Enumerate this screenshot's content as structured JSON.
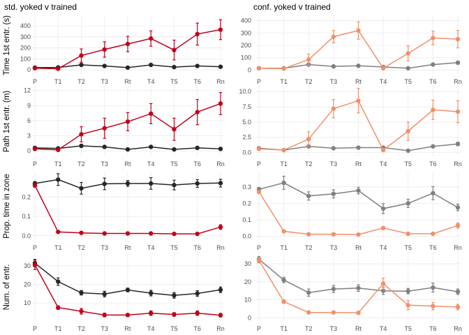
{
  "chart_data": [
    {
      "type": "line",
      "panel_title": "std. yoked v trained",
      "ylabel": "Time 1st entr. (s)",
      "categories": [
        "P",
        "T1",
        "T2",
        "T3",
        "Rt",
        "T4",
        "T5",
        "T6",
        "Rn"
      ],
      "ylim": [
        -25,
        470
      ],
      "yticks": [
        0,
        100,
        200,
        300,
        400
      ],
      "grid": true,
      "series": [
        {
          "color": "#c0001a",
          "values": [
            15,
            10,
            130,
            185,
            235,
            285,
            180,
            325,
            365
          ],
          "err": [
            5,
            5,
            60,
            70,
            70,
            70,
            90,
            100,
            90
          ]
        },
        {
          "color": "#262626",
          "values": [
            20,
            22,
            45,
            35,
            20,
            45,
            25,
            35,
            28
          ],
          "err": [
            5,
            5,
            8,
            8,
            5,
            8,
            6,
            6,
            5
          ]
        }
      ]
    },
    {
      "type": "line",
      "panel_title": "conf. yoked v trained",
      "ylabel": "",
      "categories": [
        "P",
        "T1",
        "T2",
        "T3",
        "Rt",
        "T4",
        "T5",
        "T6",
        "Rn"
      ],
      "ylim": [
        -20,
        420
      ],
      "yticks": [
        0,
        100,
        200,
        300,
        400
      ],
      "grid": true,
      "series": [
        {
          "color": "#f0906a",
          "values": [
            15,
            12,
            85,
            270,
            320,
            15,
            135,
            260,
            250
          ],
          "err": [
            5,
            5,
            45,
            50,
            70,
            8,
            60,
            55,
            70
          ]
        },
        {
          "color": "#808080",
          "values": [
            15,
            15,
            45,
            30,
            35,
            25,
            15,
            45,
            60
          ],
          "err": [
            5,
            5,
            10,
            8,
            8,
            8,
            5,
            10,
            12
          ]
        }
      ]
    },
    {
      "type": "line",
      "panel_title": "",
      "ylabel": "Path 1st entr. (m)",
      "categories": [
        "P",
        "T1",
        "T2",
        "T3",
        "Rt",
        "T4",
        "T5",
        "T6",
        "Rn"
      ],
      "ylim": [
        -0.8,
        12.5
      ],
      "yticks": [
        0,
        3,
        6,
        9,
        12
      ],
      "grid": true,
      "series": [
        {
          "color": "#c0001a",
          "values": [
            0.4,
            0.2,
            3.3,
            4.5,
            5.8,
            7.4,
            4.3,
            7.7,
            9.4
          ],
          "err": [
            0.2,
            0.2,
            1.5,
            2.0,
            1.8,
            2.0,
            2.2,
            2.5,
            2.2
          ]
        },
        {
          "color": "#262626",
          "values": [
            0.6,
            0.5,
            1.0,
            0.8,
            0.3,
            0.8,
            0.3,
            0.6,
            0.4
          ],
          "err": [
            0.2,
            0.2,
            0.3,
            0.2,
            0.1,
            0.2,
            0.1,
            0.2,
            0.1
          ]
        }
      ]
    },
    {
      "type": "line",
      "panel_title": "",
      "ylabel": "",
      "categories": [
        "P",
        "T1",
        "T2",
        "T3",
        "Rt",
        "T4",
        "T5",
        "T6",
        "Rn"
      ],
      "ylim": [
        -0.4,
        10.6
      ],
      "yticks": [
        0.0,
        2.5,
        5.0,
        7.5,
        10.0
      ],
      "grid": true,
      "series": [
        {
          "color": "#f0906a",
          "values": [
            0.6,
            0.4,
            2.2,
            7.2,
            8.5,
            0.4,
            3.5,
            7.0,
            6.7
          ],
          "err": [
            0.2,
            0.2,
            1.2,
            1.5,
            2.0,
            0.2,
            1.5,
            1.6,
            1.8
          ]
        },
        {
          "color": "#808080",
          "values": [
            0.7,
            0.4,
            1.0,
            0.7,
            0.8,
            0.8,
            0.3,
            1.0,
            1.4
          ],
          "err": [
            0.2,
            0.1,
            0.2,
            0.2,
            0.2,
            0.2,
            0.1,
            0.2,
            0.3
          ]
        }
      ]
    },
    {
      "type": "line",
      "panel_title": "",
      "ylabel": "Prop. time in zone",
      "categories": [
        "P",
        "T1",
        "T2",
        "T3",
        "Rt",
        "T4",
        "T5",
        "T6",
        "Rn"
      ],
      "ylim": [
        -0.015,
        0.32
      ],
      "yticks": [
        0.0,
        0.1,
        0.2
      ],
      "grid": true,
      "series": [
        {
          "color": "#c0001a",
          "values": [
            0.26,
            0.02,
            0.015,
            0.012,
            0.012,
            0.012,
            0.01,
            0.01,
            0.045
          ],
          "err": [
            0.01,
            0.004,
            0.004,
            0.003,
            0.003,
            0.003,
            0.003,
            0.003,
            0.012
          ]
        },
        {
          "color": "#262626",
          "values": [
            0.27,
            0.29,
            0.245,
            0.268,
            0.27,
            0.27,
            0.262,
            0.27,
            0.272
          ],
          "err": [
            0.01,
            0.03,
            0.03,
            0.03,
            0.015,
            0.03,
            0.025,
            0.02,
            0.02
          ]
        }
      ]
    },
    {
      "type": "line",
      "panel_title": "",
      "ylabel": "",
      "categories": [
        "P",
        "T1",
        "T2",
        "T3",
        "Rt",
        "T4",
        "T5",
        "T6",
        "Rn"
      ],
      "ylim": [
        -0.015,
        0.38
      ],
      "yticks": [
        0.0,
        0.1,
        0.2,
        0.3
      ],
      "grid": true,
      "series": [
        {
          "color": "#f0906a",
          "values": [
            0.27,
            0.03,
            0.012,
            0.012,
            0.01,
            0.05,
            0.015,
            0.015,
            0.065
          ],
          "err": [
            0.01,
            0.005,
            0.003,
            0.003,
            0.003,
            0.005,
            0.003,
            0.003,
            0.015
          ]
        },
        {
          "color": "#808080",
          "values": [
            0.285,
            0.325,
            0.245,
            0.258,
            0.278,
            0.168,
            0.2,
            0.262,
            0.175
          ],
          "err": [
            0.012,
            0.04,
            0.025,
            0.025,
            0.02,
            0.03,
            0.025,
            0.04,
            0.02
          ]
        }
      ]
    },
    {
      "type": "line",
      "panel_title": "",
      "ylabel": "Num. of entr.",
      "categories": [
        "P",
        "T1",
        "T2",
        "T3",
        "Rt",
        "T4",
        "T5",
        "T6",
        "Rn"
      ],
      "ylim": [
        1,
        36
      ],
      "yticks": [
        10,
        20,
        30
      ],
      "grid": true,
      "series": [
        {
          "color": "#c0001a",
          "values": [
            30.5,
            7.5,
            5.5,
            3.5,
            3.5,
            4.5,
            3.8,
            4.5,
            3.4
          ],
          "err": [
            2.5,
            1.0,
            1.5,
            1.0,
            0.8,
            1.2,
            1.0,
            1.2,
            1.0
          ]
        },
        {
          "color": "#262626",
          "values": [
            31.5,
            21.5,
            15.5,
            14.8,
            17,
            15.3,
            14.1,
            15.1,
            17.1
          ],
          "err": [
            2.0,
            2.0,
            1.2,
            1.5,
            1.0,
            1.5,
            1.5,
            1.5,
            1.5
          ]
        }
      ]
    },
    {
      "type": "line",
      "panel_title": "",
      "ylabel": "",
      "categories": [
        "P",
        "T1",
        "T2",
        "T3",
        "Rt",
        "T4",
        "T5",
        "T6",
        "Rn"
      ],
      "ylim": [
        -1,
        35
      ],
      "yticks": [
        0,
        10,
        20,
        30
      ],
      "grid": true,
      "series": [
        {
          "color": "#f0906a",
          "values": [
            32,
            9,
            3,
            3,
            2.8,
            19,
            7,
            6.5,
            6
          ],
          "err": [
            1.5,
            1.0,
            0.5,
            0.5,
            0.5,
            3.0,
            2.5,
            2.0,
            1.5
          ]
        },
        {
          "color": "#808080",
          "values": [
            32.5,
            21,
            14,
            16,
            16.5,
            15,
            14.8,
            16.8,
            14.5
          ],
          "err": [
            1.5,
            1.5,
            2.0,
            2.0,
            1.8,
            2.0,
            1.5,
            2.5,
            1.5
          ]
        }
      ]
    }
  ]
}
